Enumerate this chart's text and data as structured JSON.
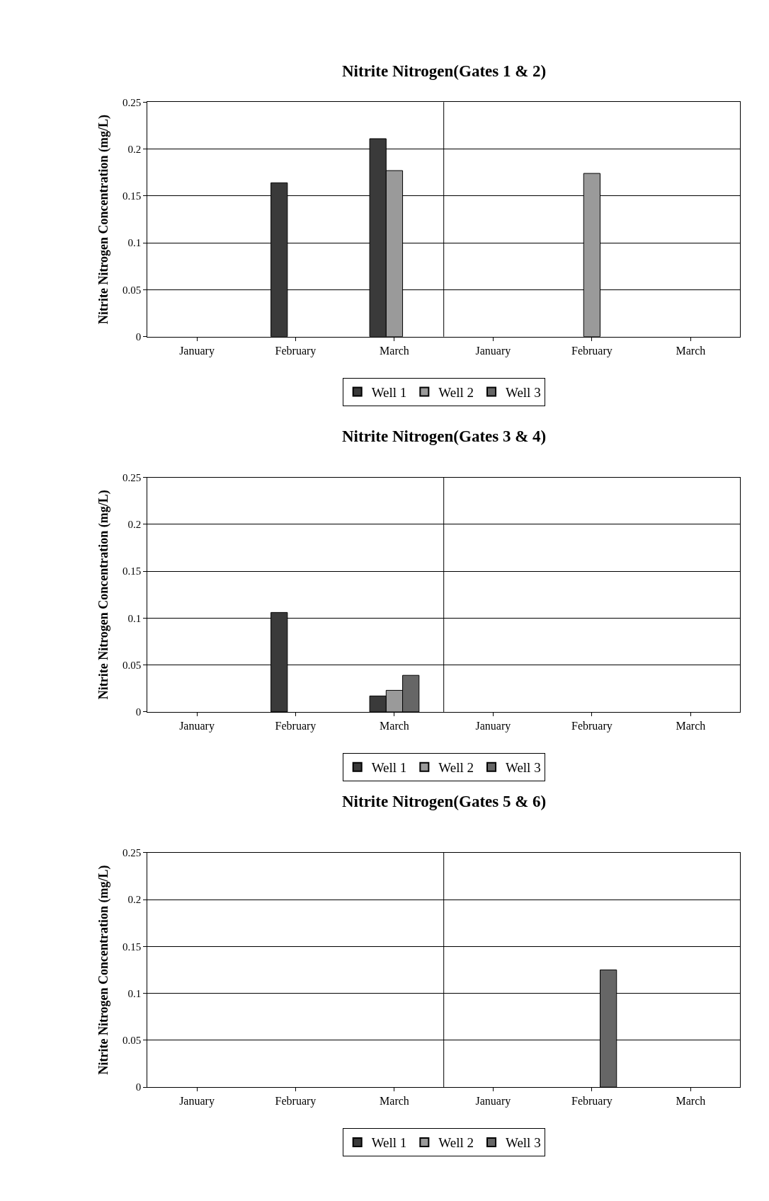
{
  "chart_data": [
    {
      "type": "bar",
      "title": "Nitrite Nitrogen(Gates 1 & 2)",
      "ylabel": "Nitrite Nitrogen Concentration (mg/L)",
      "categories": [
        "January",
        "February",
        "March",
        "January",
        "February",
        "March"
      ],
      "series": [
        {
          "name": "Well 1",
          "color": "#3a3a3a",
          "values": [
            null,
            0.164,
            0.211,
            null,
            null,
            null
          ]
        },
        {
          "name": "Well 2",
          "color": "#9a9a9a",
          "values": [
            null,
            null,
            0.177,
            null,
            0.174,
            null
          ]
        },
        {
          "name": "Well 3",
          "color": "#666666",
          "values": [
            null,
            null,
            null,
            null,
            null,
            null
          ]
        }
      ],
      "ylim": [
        0,
        0.25
      ],
      "yticks": [
        0,
        0.05,
        0.1,
        0.15,
        0.2,
        0.25
      ],
      "grid": "y",
      "legend": "bottom"
    },
    {
      "type": "bar",
      "title": "Nitrite Nitrogen(Gates 3 & 4)",
      "ylabel": "Nitrite Nitrogen Concentration (mg/L)",
      "categories": [
        "January",
        "February",
        "March",
        "January",
        "February",
        "March"
      ],
      "series": [
        {
          "name": "Well 1",
          "color": "#3a3a3a",
          "values": [
            null,
            0.106,
            0.017,
            null,
            null,
            null
          ]
        },
        {
          "name": "Well 2",
          "color": "#9a9a9a",
          "values": [
            null,
            null,
            0.023,
            null,
            null,
            null
          ]
        },
        {
          "name": "Well 3",
          "color": "#666666",
          "values": [
            null,
            null,
            0.039,
            null,
            null,
            null
          ]
        }
      ],
      "ylim": [
        0,
        0.25
      ],
      "yticks": [
        0,
        0.05,
        0.1,
        0.15,
        0.2,
        0.25
      ],
      "grid": "y",
      "legend": "bottom"
    },
    {
      "type": "bar",
      "title": "Nitrite Nitrogen(Gates 5 & 6)",
      "ylabel": "Nitrite Nitrogen Concentration (mg/L)",
      "categories": [
        "January",
        "February",
        "March",
        "January",
        "February",
        "March"
      ],
      "series": [
        {
          "name": "Well 1",
          "color": "#3a3a3a",
          "values": [
            null,
            null,
            null,
            null,
            null,
            null
          ]
        },
        {
          "name": "Well 2",
          "color": "#9a9a9a",
          "values": [
            null,
            null,
            null,
            null,
            null,
            null
          ]
        },
        {
          "name": "Well 3",
          "color": "#666666",
          "values": [
            null,
            null,
            null,
            null,
            0.125,
            null
          ]
        }
      ],
      "ylim": [
        0,
        0.25
      ],
      "yticks": [
        0,
        0.05,
        0.1,
        0.15,
        0.2,
        0.25
      ],
      "grid": "y",
      "legend": "bottom"
    }
  ]
}
